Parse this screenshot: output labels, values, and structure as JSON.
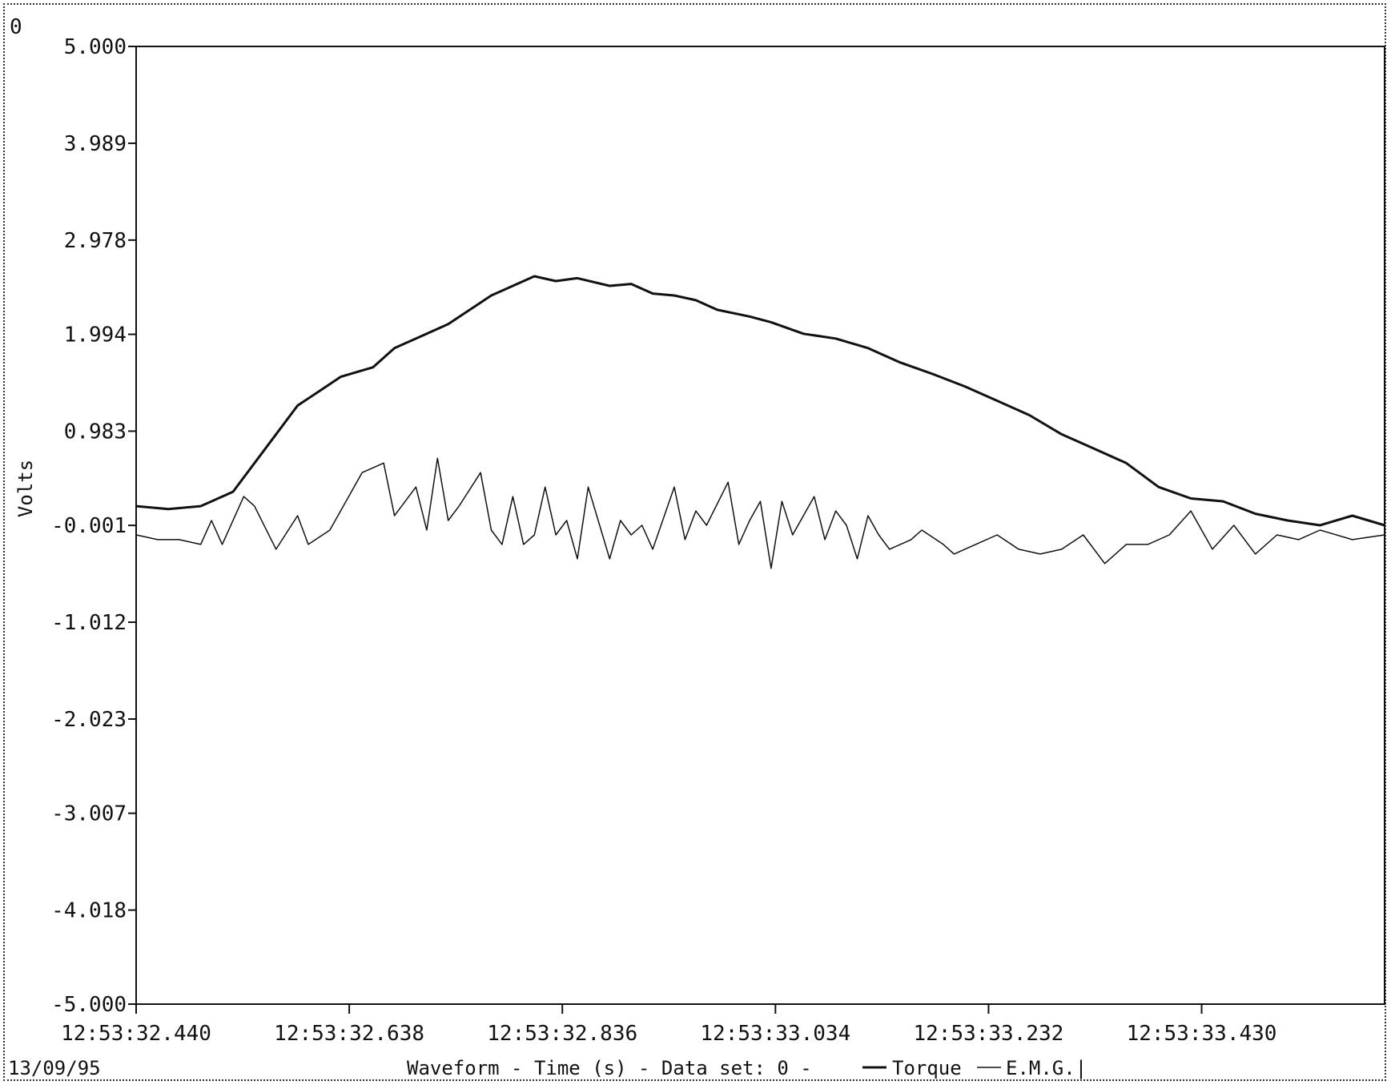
{
  "corner_label": "0",
  "date": "13/09/95",
  "footer": {
    "prefix": "Waveform - Time (s) - Data set: 0 -",
    "series1": "Torque",
    "series2": "E.M.G.|"
  },
  "chart_data": {
    "type": "line",
    "xlabel": "Waveform - Time (s)",
    "ylabel": "Volts",
    "ylim": [
      -5.0,
      5.0
    ],
    "xlim": [
      "12:53:32.440",
      "12:53:33.600"
    ],
    "yticks": [
      "5.000",
      "3.989",
      "2.978",
      "1.994",
      "0.983",
      "-0.001",
      "-1.012",
      "-2.023",
      "-3.007",
      "-4.018",
      "-5.000"
    ],
    "ytick_values": [
      5.0,
      3.989,
      2.978,
      1.994,
      0.983,
      -0.001,
      -1.012,
      -2.023,
      -3.007,
      -4.018,
      -5.0
    ],
    "xticks": [
      "12:53:32.440",
      "12:53:32.638",
      "12:53:32.836",
      "12:53:33.034",
      "12:53:33.232",
      "12:53:33.430"
    ],
    "grid": false,
    "legend": "bottom",
    "series": [
      {
        "name": "Torque",
        "color": "#111111",
        "x": [
          32.44,
          32.47,
          32.5,
          32.53,
          32.56,
          32.59,
          32.61,
          32.63,
          32.66,
          32.68,
          32.71,
          32.73,
          32.75,
          32.77,
          32.79,
          32.81,
          32.83,
          32.85,
          32.88,
          32.9,
          32.92,
          32.94,
          32.96,
          32.98,
          33.01,
          33.03,
          33.06,
          33.09,
          33.12,
          33.15,
          33.18,
          33.21,
          33.24,
          33.27,
          33.3,
          33.33,
          33.36,
          33.39,
          33.42,
          33.45,
          33.48,
          33.51,
          33.54,
          33.57,
          33.6
        ],
        "y": [
          0.2,
          0.17,
          0.2,
          0.35,
          0.8,
          1.25,
          1.4,
          1.55,
          1.65,
          1.85,
          2.0,
          2.1,
          2.25,
          2.4,
          2.5,
          2.6,
          2.55,
          2.58,
          2.5,
          2.52,
          2.42,
          2.4,
          2.35,
          2.25,
          2.18,
          2.12,
          2.0,
          1.95,
          1.85,
          1.7,
          1.58,
          1.45,
          1.3,
          1.15,
          0.95,
          0.8,
          0.65,
          0.4,
          0.28,
          0.25,
          0.12,
          0.05,
          0.0,
          0.1,
          0.0
        ]
      },
      {
        "name": "E.M.G.",
        "color": "#111111",
        "x": [
          32.44,
          32.46,
          32.48,
          32.5,
          32.51,
          32.52,
          32.54,
          32.55,
          32.57,
          32.59,
          32.6,
          32.62,
          32.64,
          32.65,
          32.67,
          32.68,
          32.7,
          32.71,
          32.72,
          32.73,
          32.74,
          32.76,
          32.77,
          32.78,
          32.79,
          32.8,
          32.81,
          32.82,
          32.83,
          32.84,
          32.85,
          32.86,
          32.88,
          32.89,
          32.9,
          32.91,
          32.92,
          32.94,
          32.95,
          32.96,
          32.97,
          32.99,
          33.0,
          33.01,
          33.02,
          33.03,
          33.04,
          33.05,
          33.07,
          33.08,
          33.09,
          33.1,
          33.11,
          33.12,
          33.13,
          33.14,
          33.16,
          33.17,
          33.19,
          33.2,
          33.22,
          33.24,
          33.26,
          33.28,
          33.3,
          33.32,
          33.34,
          33.36,
          33.38,
          33.4,
          33.42,
          33.44,
          33.46,
          33.48,
          33.5,
          33.52,
          33.54,
          33.57,
          33.6
        ],
        "y": [
          -0.1,
          -0.15,
          -0.15,
          -0.2,
          0.05,
          -0.2,
          0.3,
          0.2,
          -0.25,
          0.1,
          -0.2,
          -0.05,
          0.35,
          0.55,
          0.65,
          0.1,
          0.4,
          -0.05,
          0.7,
          0.05,
          0.2,
          0.55,
          -0.05,
          -0.2,
          0.3,
          -0.2,
          -0.1,
          0.4,
          -0.1,
          0.05,
          -0.35,
          0.4,
          -0.35,
          0.05,
          -0.1,
          0.0,
          -0.25,
          0.4,
          -0.15,
          0.15,
          0.0,
          0.45,
          -0.2,
          0.05,
          0.25,
          -0.45,
          0.25,
          -0.1,
          0.3,
          -0.15,
          0.15,
          0.0,
          -0.35,
          0.1,
          -0.1,
          -0.25,
          -0.15,
          -0.05,
          -0.2,
          -0.3,
          -0.2,
          -0.1,
          -0.25,
          -0.3,
          -0.25,
          -0.1,
          -0.4,
          -0.2,
          -0.2,
          -0.1,
          0.15,
          -0.25,
          0.0,
          -0.3,
          -0.1,
          -0.15,
          -0.05,
          -0.15,
          -0.1
        ]
      }
    ]
  }
}
